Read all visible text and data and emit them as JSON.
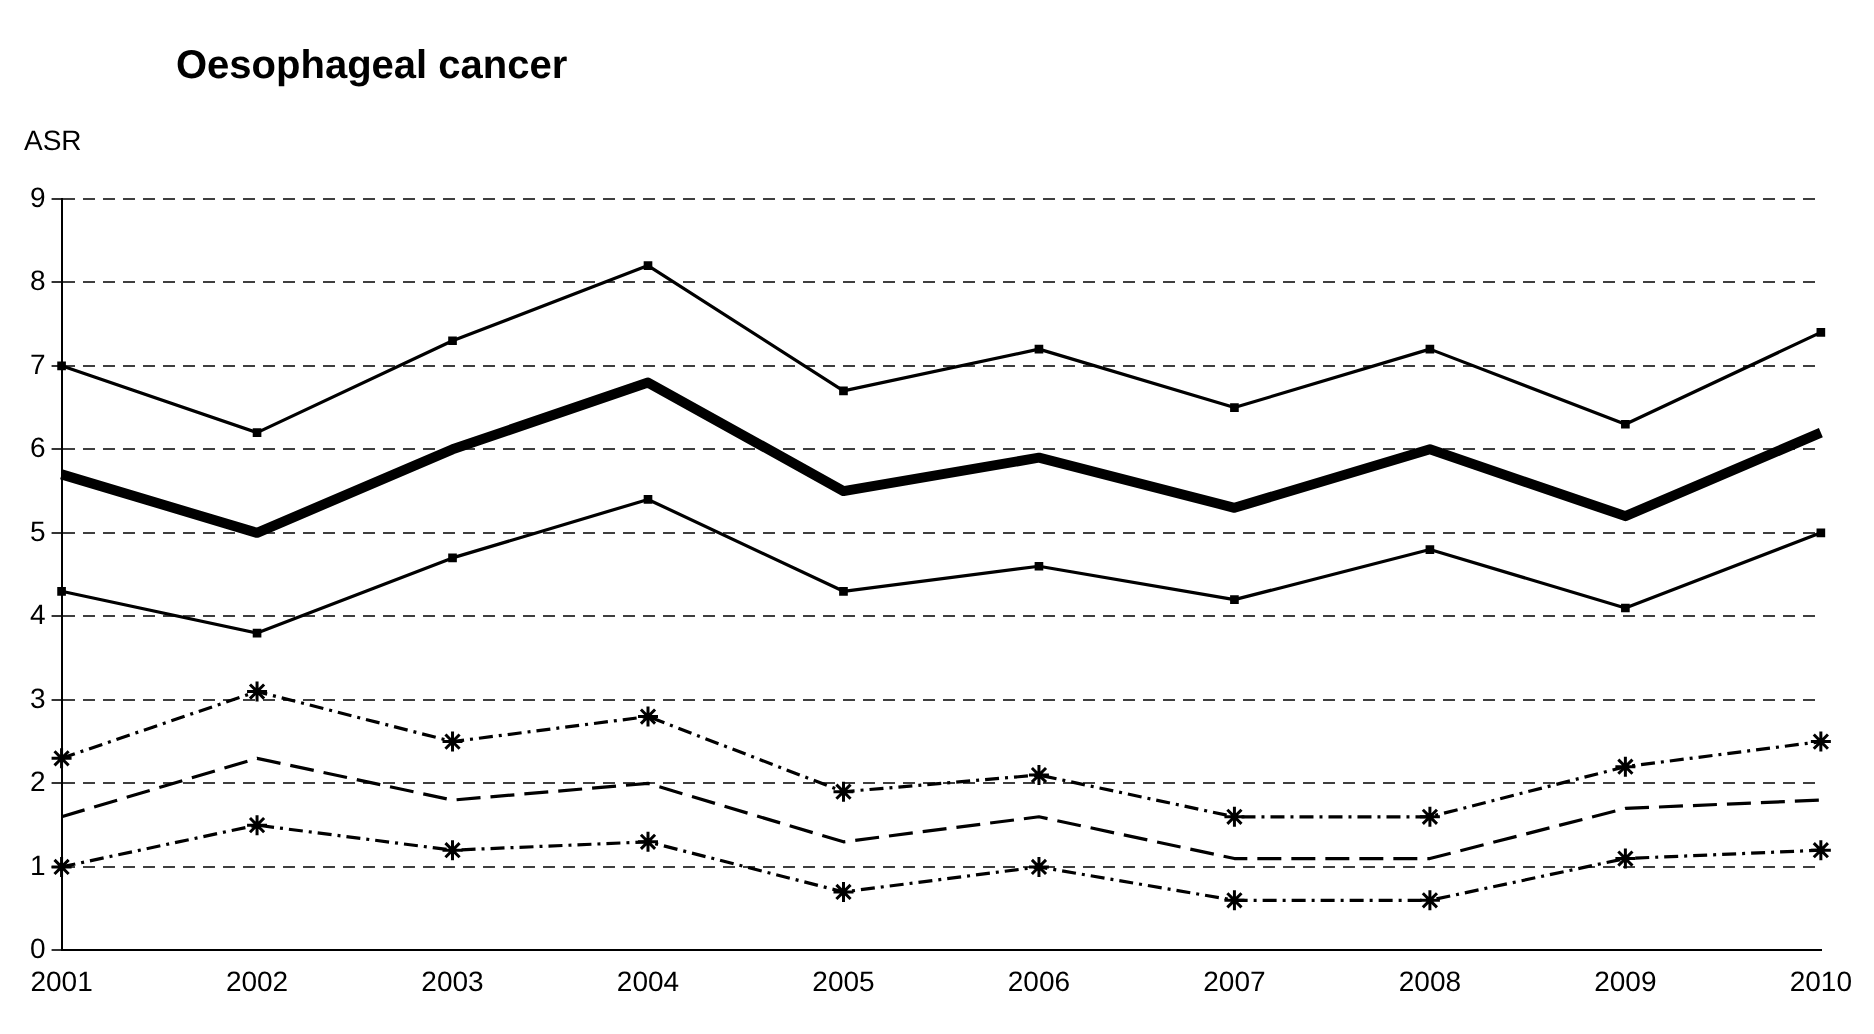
{
  "chart_data": {
    "type": "line",
    "title": "Oesophageal cancer",
    "ylabel": "ASR",
    "categories": [
      "2001",
      "2002",
      "2003",
      "2004",
      "2005",
      "2006",
      "2007",
      "2008",
      "2009",
      "2010"
    ],
    "ylim": [
      0,
      9
    ],
    "yticks": [
      0,
      1,
      2,
      3,
      4,
      5,
      6,
      7,
      8,
      9
    ],
    "grid": "y",
    "legend": false,
    "series": [
      {
        "color": "#000000",
        "values": [
          7.0,
          6.2,
          7.3,
          8.2,
          6.7,
          7.2,
          6.5,
          7.2,
          6.3,
          7.4
        ],
        "marker": "square",
        "line_style": "solid"
      },
      {
        "color": "#000000",
        "values": [
          5.7,
          5.0,
          6.0,
          6.8,
          5.5,
          5.9,
          5.3,
          6.0,
          5.2,
          6.2
        ],
        "marker": "none",
        "line_style": "solid"
      },
      {
        "color": "#000000",
        "values": [
          4.3,
          3.8,
          4.7,
          5.4,
          4.3,
          4.6,
          4.2,
          4.8,
          4.1,
          5.0
        ],
        "marker": "square",
        "line_style": "solid"
      },
      {
        "color": "#000000",
        "values": [
          2.3,
          3.1,
          2.5,
          2.8,
          1.9,
          2.1,
          1.6,
          1.6,
          2.2,
          2.5
        ],
        "marker": "cross",
        "line_style": "dotted"
      },
      {
        "color": "#000000",
        "values": [
          1.6,
          2.3,
          1.8,
          2.0,
          1.3,
          1.6,
          1.1,
          1.1,
          1.7,
          1.8
        ],
        "marker": "none",
        "line_style": "dashed"
      },
      {
        "color": "#000000",
        "values": [
          1.0,
          1.5,
          1.2,
          1.3,
          0.7,
          1.0,
          0.6,
          0.6,
          1.1,
          1.2
        ],
        "marker": "cross",
        "line_style": "dotted"
      }
    ]
  }
}
